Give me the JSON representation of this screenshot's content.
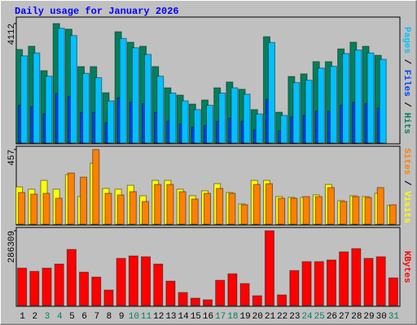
{
  "title": "Daily usage for January 2026",
  "chart_data": [
    {
      "type": "bar",
      "separator": " / ",
      "ylim": [
        0,
        4112
      ],
      "yticks": [
        4112
      ],
      "series": [
        {
          "name": "Pages",
          "color": "#00c0ff",
          "values": [
            3000,
            3100,
            2300,
            3950,
            3700,
            2400,
            2250,
            1450,
            3600,
            3280,
            3050,
            2300,
            1720,
            1450,
            1150,
            1300,
            1720,
            1900,
            1680,
            1000,
            3460,
            950,
            2080,
            2160,
            2580,
            2640,
            3080,
            3200,
            3100,
            2880,
            0
          ]
        },
        {
          "name": "Files",
          "color": "#0040ff",
          "values": [
            1300,
            1250,
            1000,
            1700,
            1600,
            1050,
            1050,
            700,
            1550,
            1400,
            1350,
            1050,
            750,
            650,
            550,
            600,
            750,
            850,
            750,
            450,
            1500,
            420,
            900,
            950,
            1100,
            1100,
            1300,
            1400,
            1350,
            1200,
            0
          ]
        },
        {
          "name": "Hits",
          "color": "#00805c",
          "values": [
            3220,
            3330,
            2490,
            4112,
            3920,
            2630,
            2630,
            1730,
            3830,
            3470,
            3330,
            2630,
            1900,
            1650,
            1340,
            1480,
            1900,
            2100,
            1850,
            1150,
            3660,
            1060,
            2290,
            2380,
            2800,
            2800,
            3240,
            3470,
            3330,
            3020,
            0
          ]
        }
      ]
    },
    {
      "type": "bar",
      "separator": " / ",
      "ylim": [
        0,
        457
      ],
      "yticks": [
        457
      ],
      "series": [
        {
          "name": "Sites",
          "color": "#ff8000",
          "values": [
            194,
            184,
            189,
            159,
            313,
            288,
            457,
            189,
            179,
            199,
            139,
            243,
            243,
            199,
            154,
            189,
            219,
            189,
            119,
            243,
            248,
            159,
            159,
            169,
            169,
            224,
            139,
            169,
            164,
            224,
            119
          ]
        },
        {
          "name": "Visits",
          "color": "#ffff00",
          "values": [
            228,
            214,
            268,
            214,
            303,
            169,
            373,
            219,
            214,
            238,
            174,
            268,
            268,
            214,
            174,
            204,
            248,
            194,
            124,
            268,
            268,
            169,
            164,
            164,
            179,
            243,
            144,
            174,
            169,
            189,
            114
          ]
        }
      ]
    },
    {
      "type": "bar",
      "ylim": [
        0,
        286309
      ],
      "yticks": [
        286309
      ],
      "categories": [
        "1",
        "2",
        "3",
        "4",
        "5",
        "6",
        "7",
        "8",
        "9",
        "10",
        "11",
        "12",
        "13",
        "14",
        "15",
        "16",
        "17",
        "18",
        "19",
        "20",
        "21",
        "22",
        "23",
        "24",
        "25",
        "26",
        "27",
        "28",
        "29",
        "30",
        "31"
      ],
      "category_colors": [
        "#000000",
        "#000000",
        "#00805c",
        "#00805c",
        "#000000",
        "#000000",
        "#000000",
        "#000000",
        "#000000",
        "#00805c",
        "#00805c",
        "#000000",
        "#000000",
        "#000000",
        "#000000",
        "#000000",
        "#00805c",
        "#00805c",
        "#000000",
        "#000000",
        "#000000",
        "#000000",
        "#000000",
        "#00805c",
        "#00805c",
        "#000000",
        "#000000",
        "#000000",
        "#000000",
        "#000000",
        "#00805c"
      ],
      "series": [
        {
          "name": "KBytes",
          "color": "#ff0000",
          "values": [
            143200,
            130700,
            143200,
            158700,
            214700,
            127600,
            108900,
            59100,
            180500,
            189800,
            186700,
            158700,
            93400,
            49800,
            28000,
            21800,
            96500,
            121400,
            84000,
            37300,
            286309,
            40500,
            133800,
            168000,
            168000,
            174300,
            205400,
            217800,
            180500,
            186700,
            105800
          ]
        }
      ]
    }
  ]
}
